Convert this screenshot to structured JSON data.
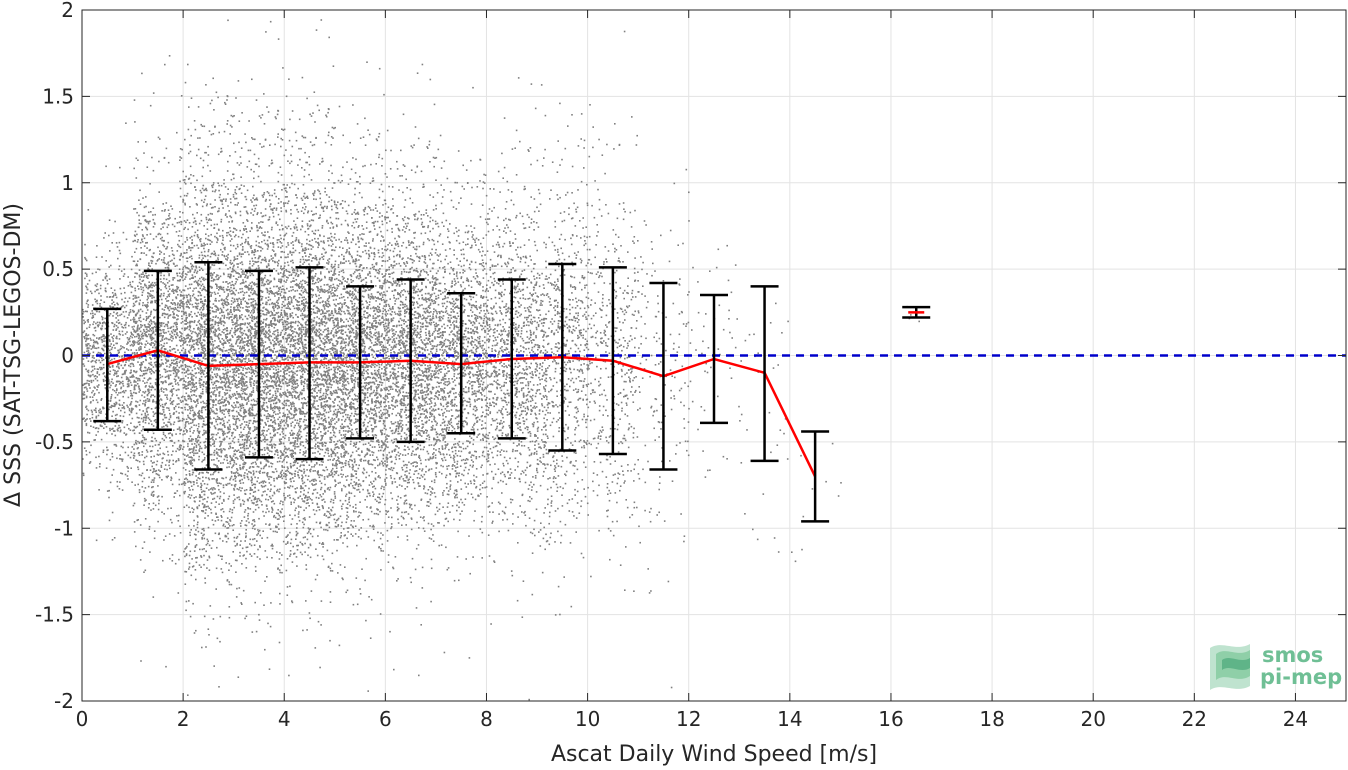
{
  "chart_data": {
    "type": "scatter",
    "title": "",
    "xlabel": "Ascat Daily Wind Speed [m/s]",
    "ylabel": "Δ SSS (SAT-TSG-LEGOS-DM)",
    "xlim": [
      0,
      25
    ],
    "ylim": [
      -2,
      2
    ],
    "x_ticks": [
      0,
      2,
      4,
      6,
      8,
      10,
      12,
      14,
      16,
      18,
      20,
      22,
      24
    ],
    "x_tick_labels": [
      "0",
      "2",
      "4",
      "6",
      "8",
      "10",
      "12",
      "14",
      "16",
      "18",
      "20",
      "22",
      "24"
    ],
    "y_ticks": [
      -2,
      -1.5,
      -1,
      -0.5,
      0,
      0.5,
      1,
      1.5,
      2
    ],
    "y_tick_labels": [
      "-2",
      "-1.5",
      "-1",
      "-0.5",
      "0",
      "0.5",
      "1",
      "1.5",
      "2"
    ],
    "grid": true,
    "reference_line": {
      "y": 0,
      "color": "#0000cc",
      "style": "dashed"
    },
    "scatter_color": "#808080",
    "mean_line_color": "#ff0000",
    "errorbar_color": "#000000",
    "binned_stats": {
      "x": [
        0.5,
        1.5,
        2.5,
        3.5,
        4.5,
        5.5,
        6.5,
        7.5,
        8.5,
        9.5,
        10.5,
        11.5,
        12.5,
        13.5,
        14.5,
        16.5
      ],
      "mean": [
        -0.05,
        0.03,
        -0.06,
        -0.05,
        -0.04,
        -0.04,
        -0.03,
        -0.05,
        -0.02,
        -0.01,
        -0.03,
        -0.12,
        -0.02,
        -0.1,
        -0.7,
        0.25
      ],
      "upper": [
        0.27,
        0.49,
        0.54,
        0.49,
        0.51,
        0.4,
        0.44,
        0.36,
        0.44,
        0.53,
        0.51,
        0.42,
        0.35,
        0.4,
        -0.44,
        0.28
      ],
      "lower": [
        -0.38,
        -0.43,
        -0.66,
        -0.59,
        -0.6,
        -0.48,
        -0.5,
        -0.45,
        -0.48,
        -0.55,
        -0.57,
        -0.66,
        -0.39,
        -0.61,
        -0.96,
        0.22
      ]
    },
    "scatter_density": [
      {
        "x0": 0.0,
        "x1": 1.0,
        "n": 900,
        "mean": -0.05,
        "sd": 0.3
      },
      {
        "x0": 1.0,
        "x1": 2.0,
        "n": 1600,
        "mean": 0.02,
        "sd": 0.45
      },
      {
        "x0": 2.0,
        "x1": 3.0,
        "n": 2300,
        "mean": -0.05,
        "sd": 0.55
      },
      {
        "x0": 3.0,
        "x1": 4.0,
        "n": 2500,
        "mean": -0.05,
        "sd": 0.52
      },
      {
        "x0": 4.0,
        "x1": 5.0,
        "n": 2400,
        "mean": -0.04,
        "sd": 0.52
      },
      {
        "x0": 5.0,
        "x1": 6.0,
        "n": 2100,
        "mean": -0.04,
        "sd": 0.47
      },
      {
        "x0": 6.0,
        "x1": 7.0,
        "n": 1800,
        "mean": -0.03,
        "sd": 0.45
      },
      {
        "x0": 7.0,
        "x1": 8.0,
        "n": 1400,
        "mean": -0.05,
        "sd": 0.42
      },
      {
        "x0": 8.0,
        "x1": 9.0,
        "n": 1100,
        "mean": -0.02,
        "sd": 0.44
      },
      {
        "x0": 9.0,
        "x1": 10.0,
        "n": 800,
        "mean": -0.01,
        "sd": 0.5
      },
      {
        "x0": 10.0,
        "x1": 11.0,
        "n": 450,
        "mean": -0.03,
        "sd": 0.5
      },
      {
        "x0": 11.0,
        "x1": 12.0,
        "n": 160,
        "mean": -0.1,
        "sd": 0.45
      },
      {
        "x0": 12.0,
        "x1": 13.0,
        "n": 50,
        "mean": -0.02,
        "sd": 0.35
      },
      {
        "x0": 13.0,
        "x1": 14.0,
        "n": 30,
        "mean": -0.15,
        "sd": 0.45
      },
      {
        "x0": 14.0,
        "x1": 15.0,
        "n": 10,
        "mean": -0.65,
        "sd": 0.25
      },
      {
        "x0": 16.3,
        "x1": 16.7,
        "n": 4,
        "mean": 0.25,
        "sd": 0.02
      }
    ]
  },
  "watermark": {
    "line1": "smos",
    "line2": "pi-mep"
  }
}
